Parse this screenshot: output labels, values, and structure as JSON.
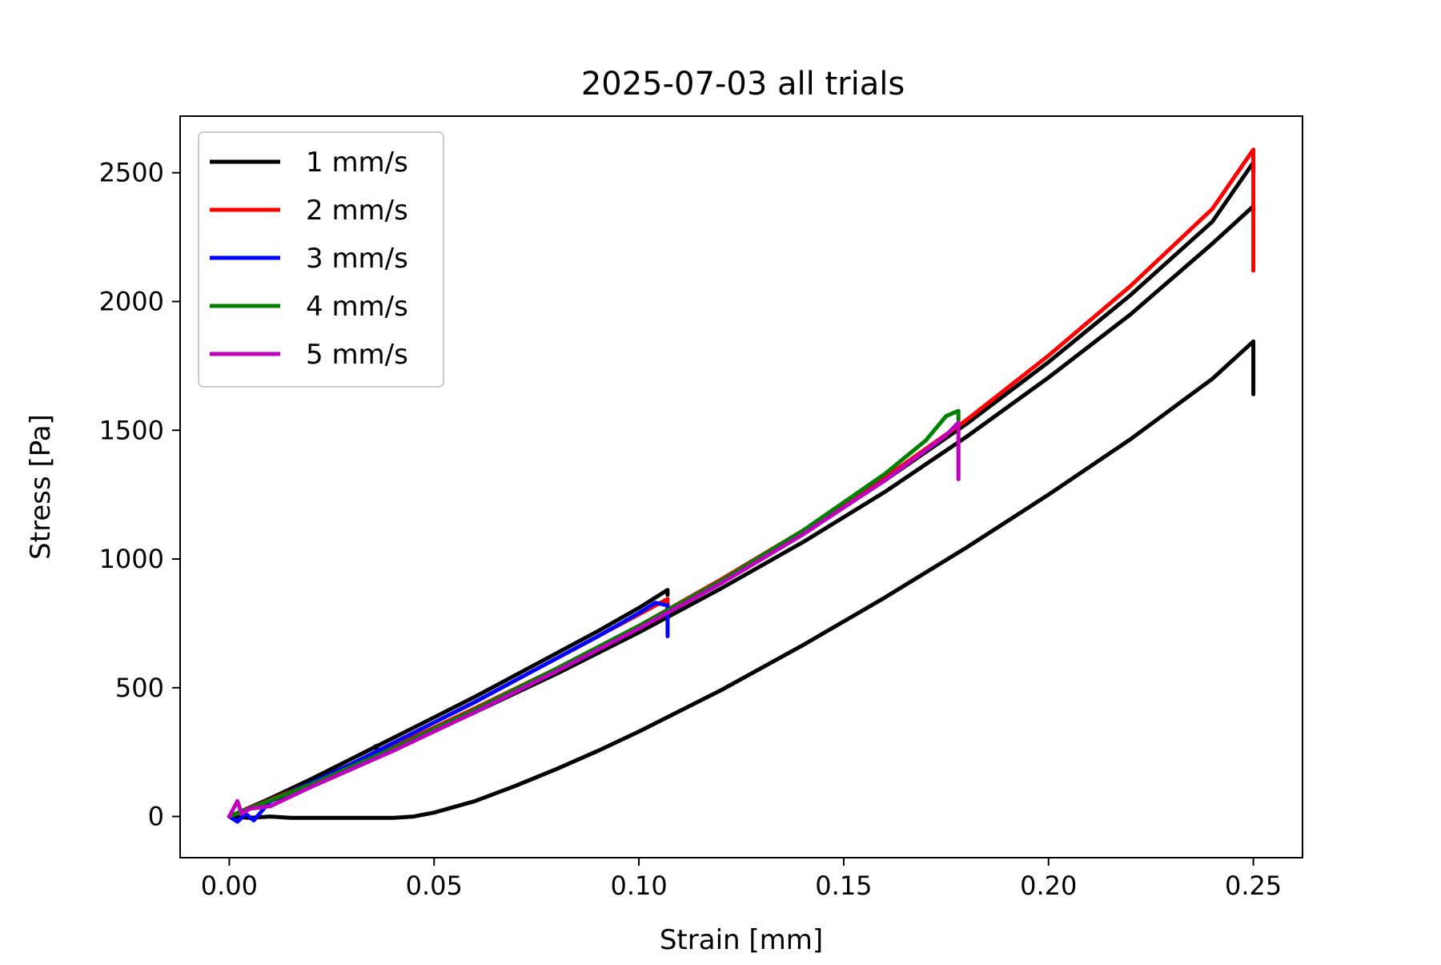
{
  "chart_data": {
    "type": "line",
    "title": "2025-07-03 all trials",
    "xlabel": "Strain [mm]",
    "ylabel": "Stress [Pa]",
    "xlim": [
      -0.012,
      0.262
    ],
    "ylim": [
      -160,
      2720
    ],
    "xticks": [
      0.0,
      0.05,
      0.1,
      0.15,
      0.2,
      0.25
    ],
    "xtick_labels": [
      "0.00",
      "0.05",
      "0.10",
      "0.15",
      "0.20",
      "0.25"
    ],
    "yticks": [
      0,
      500,
      1000,
      1500,
      2000,
      2500
    ],
    "ytick_labels": [
      "0",
      "500",
      "1000",
      "1500",
      "2000",
      "2500"
    ],
    "grid": false,
    "legend_position": "upper-left",
    "legend": [
      {
        "label": "1 mm/s",
        "color": "#000000"
      },
      {
        "label": "2 mm/s",
        "color": "#ff0000"
      },
      {
        "label": "3 mm/s",
        "color": "#0000ff"
      },
      {
        "label": "4 mm/s",
        "color": "#008000"
      },
      {
        "label": "5 mm/s",
        "color": "#bf00bf"
      }
    ],
    "series": [
      {
        "name": "1 mm/s",
        "color": "#000000",
        "x": [
          0.0,
          0.005,
          0.01,
          0.015,
          0.02,
          0.025,
          0.03,
          0.035,
          0.036,
          0.036
        ],
        "y": [
          0,
          30,
          70,
          105,
          145,
          185,
          225,
          265,
          275,
          255
        ]
      },
      {
        "name": "1 mm/s",
        "color": "#000000",
        "x": [
          0.0,
          0.01,
          0.02,
          0.03,
          0.04,
          0.05,
          0.06,
          0.07,
          0.08,
          0.09,
          0.1,
          0.107,
          0.107
        ],
        "y": [
          0,
          70,
          145,
          225,
          305,
          385,
          465,
          550,
          635,
          720,
          810,
          880,
          860
        ]
      },
      {
        "name": "1 mm/s",
        "color": "#000000",
        "x": [
          0.0,
          0.02,
          0.04,
          0.06,
          0.08,
          0.1,
          0.12,
          0.14,
          0.16,
          0.18,
          0.2,
          0.22,
          0.24,
          0.25,
          0.25
        ],
        "y": [
          0,
          120,
          260,
          405,
          555,
          715,
          885,
          1065,
          1260,
          1475,
          1705,
          1950,
          2225,
          2370,
          2350
        ]
      },
      {
        "name": "1 mm/s",
        "color": "#000000",
        "x": [
          0.0,
          0.02,
          0.04,
          0.06,
          0.08,
          0.1,
          0.12,
          0.14,
          0.16,
          0.18,
          0.2,
          0.22,
          0.24,
          0.25,
          0.25
        ],
        "y": [
          0,
          130,
          270,
          420,
          575,
          740,
          915,
          1100,
          1305,
          1525,
          1765,
          2025,
          2310,
          2540,
          2500
        ]
      },
      {
        "name": "1 mm/s",
        "color": "#000000",
        "x": [
          0.0,
          0.005,
          0.01,
          0.015,
          0.02,
          0.03,
          0.04,
          0.045,
          0.05,
          0.06,
          0.07,
          0.08,
          0.09,
          0.1,
          0.12,
          0.14,
          0.16,
          0.18,
          0.2,
          0.22,
          0.24,
          0.25,
          0.25,
          0.25
        ],
        "y": [
          0,
          -5,
          0,
          -5,
          -5,
          -5,
          -5,
          0,
          15,
          60,
          120,
          185,
          255,
          330,
          490,
          665,
          850,
          1045,
          1250,
          1465,
          1700,
          1845,
          1800,
          1640
        ]
      },
      {
        "name": "2 mm/s",
        "color": "#ff0000",
        "x": [
          0.0,
          0.01,
          0.02,
          0.03,
          0.04,
          0.05,
          0.06,
          0.07,
          0.08,
          0.09,
          0.1,
          0.107,
          0.107
        ],
        "y": [
          0,
          60,
          130,
          205,
          285,
          365,
          445,
          530,
          615,
          700,
          785,
          845,
          820
        ]
      },
      {
        "name": "2 mm/s",
        "color": "#ff0000",
        "x": [
          0.0,
          0.02,
          0.04,
          0.06,
          0.08,
          0.1,
          0.12,
          0.14,
          0.16,
          0.18,
          0.2,
          0.22,
          0.24,
          0.25,
          0.25,
          0.25
        ],
        "y": [
          0,
          130,
          270,
          420,
          575,
          740,
          920,
          1110,
          1315,
          1540,
          1790,
          2060,
          2360,
          2590,
          2400,
          2120
        ]
      },
      {
        "name": "3 mm/s",
        "color": "#0000ff",
        "x": [
          0.0,
          0.002,
          0.004,
          0.006,
          0.01,
          0.02,
          0.03,
          0.04,
          0.05,
          0.06,
          0.07,
          0.08,
          0.09,
          0.1,
          0.104,
          0.107,
          0.107
        ],
        "y": [
          0,
          -20,
          10,
          -15,
          60,
          130,
          205,
          285,
          365,
          445,
          530,
          615,
          700,
          790,
          830,
          820,
          700
        ]
      },
      {
        "name": "4 mm/s",
        "color": "#008000",
        "x": [
          0.0,
          0.02,
          0.04,
          0.06,
          0.08,
          0.1,
          0.12,
          0.14,
          0.16,
          0.17,
          0.175,
          0.178,
          0.178
        ],
        "y": [
          0,
          125,
          265,
          415,
          575,
          740,
          915,
          1110,
          1330,
          1460,
          1555,
          1575,
          1540
        ]
      },
      {
        "name": "5 mm/s",
        "color": "#bf00bf",
        "x": [
          0.0,
          0.002,
          0.003,
          0.005,
          0.01,
          0.02,
          0.04,
          0.06,
          0.08,
          0.1,
          0.12,
          0.14,
          0.16,
          0.175,
          0.178,
          0.178,
          0.178
        ],
        "y": [
          0,
          60,
          10,
          30,
          40,
          115,
          255,
          405,
          565,
          730,
          905,
          1095,
          1305,
          1480,
          1530,
          1400,
          1310
        ]
      }
    ]
  }
}
